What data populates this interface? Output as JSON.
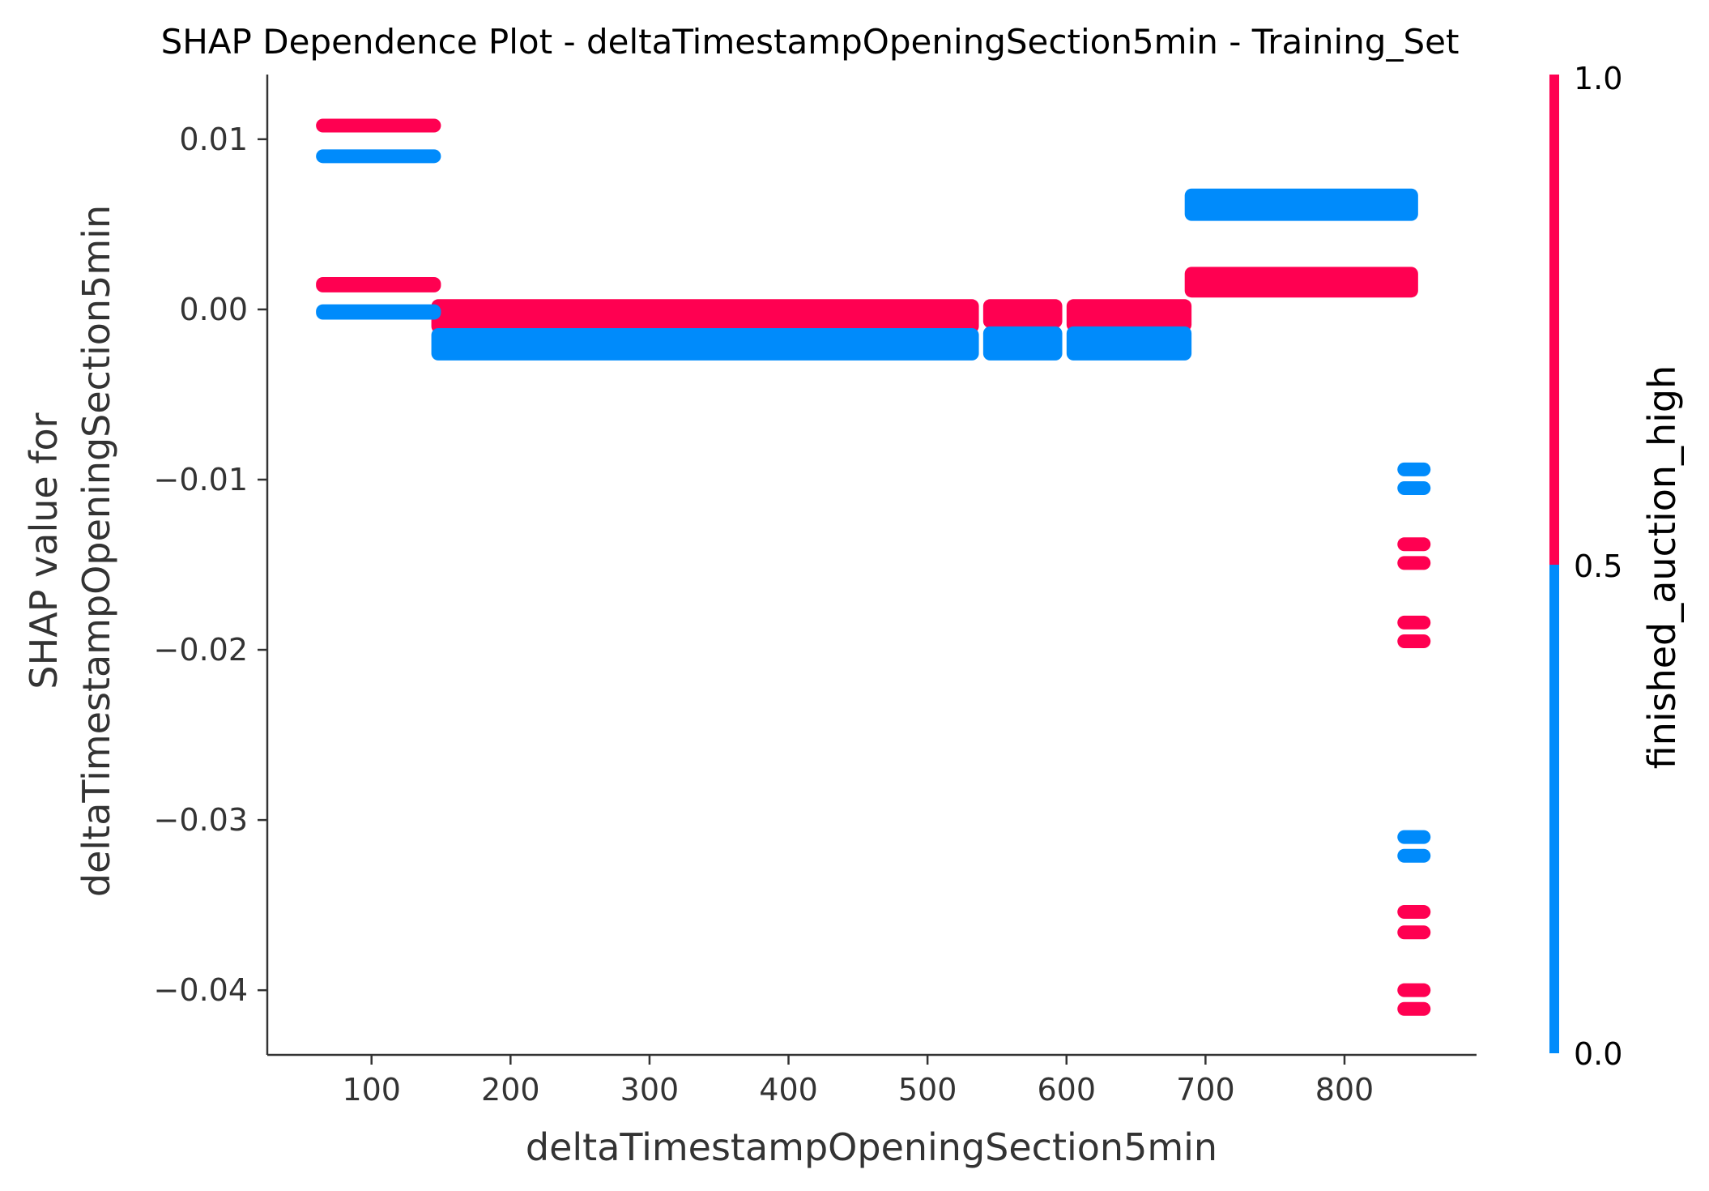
{
  "chart_data": {
    "type": "scatter",
    "title": "SHAP Dependence Plot - deltaTimestampOpeningSection5min - Training_Set",
    "xlabel": "deltaTimestampOpeningSection5min",
    "ylabel_lines": [
      "SHAP value for",
      "deltaTimestampOpeningSection5min"
    ],
    "xlim": [
      25,
      895
    ],
    "ylim": [
      -0.0438,
      0.0138
    ],
    "x_ticks": [
      100,
      200,
      300,
      400,
      500,
      600,
      700,
      800
    ],
    "y_ticks": [
      {
        "value": 0.01,
        "label": "0.01"
      },
      {
        "value": 0.0,
        "label": "0.00"
      },
      {
        "value": -0.01,
        "label": "−0.01"
      },
      {
        "value": -0.02,
        "label": "−0.02"
      },
      {
        "value": -0.03,
        "label": "−0.03"
      },
      {
        "value": -0.04,
        "label": "−0.04"
      }
    ],
    "grid": false,
    "colorbar": {
      "label": "finished_auction_high",
      "ticks": [
        "0.0",
        "0.5",
        "1.0"
      ],
      "low_color": "#008bfb",
      "high_color": "#ff0051"
    },
    "series": [
      {
        "name": "1.0",
        "color": "#ff0051",
        "bands": [
          {
            "x": [
              65,
              145
            ],
            "y": [
              0.0104,
              0.0112
            ]
          },
          {
            "x": [
              65,
              145
            ],
            "y": [
              0.001,
              0.0019
            ]
          },
          {
            "x": [
              148,
              532
            ],
            "y": [
              -0.0014,
              0.0006
            ]
          },
          {
            "x": [
              545,
              592
            ],
            "y": [
              -0.0011,
              0.0006
            ]
          },
          {
            "x": [
              605,
              685
            ],
            "y": [
              -0.0013,
              0.0006
            ]
          },
          {
            "x": [
              690,
              848
            ],
            "y": [
              0.0007,
              0.0025
            ]
          }
        ],
        "points": [
          {
            "x": 850,
            "y": -0.0138
          },
          {
            "x": 850,
            "y": -0.0149
          },
          {
            "x": 850,
            "y": -0.0184
          },
          {
            "x": 850,
            "y": -0.0195
          },
          {
            "x": 850,
            "y": -0.0354
          },
          {
            "x": 850,
            "y": -0.0366
          },
          {
            "x": 850,
            "y": -0.04
          },
          {
            "x": 850,
            "y": -0.0411
          }
        ]
      },
      {
        "name": "0.0",
        "color": "#008bfb",
        "bands": [
          {
            "x": [
              65,
              145
            ],
            "y": [
              0.0086,
              0.0094
            ]
          },
          {
            "x": [
              65,
              145
            ],
            "y": [
              -0.0006,
              0.0003
            ]
          },
          {
            "x": [
              148,
              532
            ],
            "y": [
              -0.003,
              -0.0011
            ]
          },
          {
            "x": [
              545,
              592
            ],
            "y": [
              -0.003,
              -0.001
            ]
          },
          {
            "x": [
              605,
              685
            ],
            "y": [
              -0.003,
              -0.001
            ]
          },
          {
            "x": [
              690,
              848
            ],
            "y": [
              0.0052,
              0.0071
            ]
          }
        ],
        "points": [
          {
            "x": 850,
            "y": -0.0094
          },
          {
            "x": 850,
            "y": -0.0105
          },
          {
            "x": 850,
            "y": -0.031
          },
          {
            "x": 850,
            "y": -0.0321
          }
        ]
      }
    ]
  }
}
